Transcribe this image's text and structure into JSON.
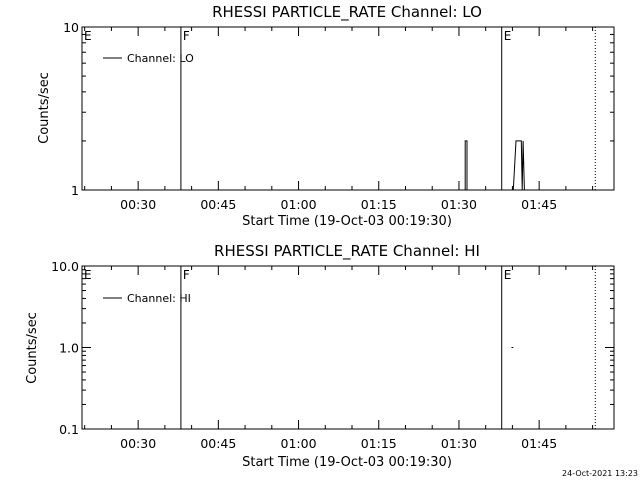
{
  "footer_stamp": "24-Oct-2021 13:23",
  "chart_data": [
    {
      "type": "line",
      "title": "RHESSI PARTICLE_RATE Channel: LO",
      "xlabel": "Start Time (19-Oct-03 00:19:30)",
      "ylabel": "Counts/sec",
      "yscale": "log",
      "ylim": [
        1,
        10
      ],
      "y_tick_labels": [
        "1",
        "10"
      ],
      "xlim": [
        "00:19:30",
        "01:59:00"
      ],
      "x_ticks": [
        "00:30",
        "00:45",
        "01:00",
        "01:15",
        "01:30",
        "01:45"
      ],
      "legend": {
        "placement": "top-left",
        "entries": [
          "Channel: LO"
        ]
      },
      "flags": [
        {
          "label": "E",
          "time": "00:19:30",
          "line": "none"
        },
        {
          "label": "F",
          "time": "00:38:00",
          "line": "solid"
        },
        {
          "label": "E",
          "time": "01:38:00",
          "line": "solid"
        },
        {
          "label": "",
          "time": "01:55:30",
          "line": "dotted"
        }
      ],
      "series": [
        {
          "name": "Channel: LO",
          "segments": [
            [
              [
                "01:31:10",
                1
              ],
              [
                "01:31:10",
                2
              ],
              [
                "01:31:30",
                2
              ],
              [
                "01:31:30",
                1
              ]
            ],
            [
              [
                "01:40:10",
                1
              ],
              [
                "01:40:40",
                2
              ],
              [
                "01:41:40",
                2
              ],
              [
                "01:41:50",
                1
              ],
              [
                "01:42:00",
                2
              ],
              [
                "01:42:15",
                1
              ]
            ]
          ]
        }
      ]
    },
    {
      "type": "line",
      "title": "RHESSI PARTICLE_RATE Channel: HI",
      "xlabel": "Start Time (19-Oct-03 00:19:30)",
      "ylabel": "Counts/sec",
      "yscale": "log",
      "ylim": [
        0.1,
        10
      ],
      "y_tick_labels": [
        "0.1",
        "1.0",
        "10.0"
      ],
      "xlim": [
        "00:19:30",
        "01:59:00"
      ],
      "x_ticks": [
        "00:30",
        "00:45",
        "01:00",
        "01:15",
        "01:30",
        "01:45"
      ],
      "legend": {
        "placement": "top-left",
        "entries": [
          "Channel: HI"
        ]
      },
      "flags": [
        {
          "label": "E",
          "time": "00:19:30",
          "line": "none"
        },
        {
          "label": "F",
          "time": "00:38:00",
          "line": "solid"
        },
        {
          "label": "E",
          "time": "01:38:00",
          "line": "solid"
        },
        {
          "label": "",
          "time": "01:55:30",
          "line": "dotted"
        }
      ],
      "series": [
        {
          "name": "Channel: HI",
          "segments": [
            [
              [
                "01:39:50",
                1
              ],
              [
                "01:40:10",
                1
              ]
            ]
          ]
        }
      ]
    }
  ]
}
